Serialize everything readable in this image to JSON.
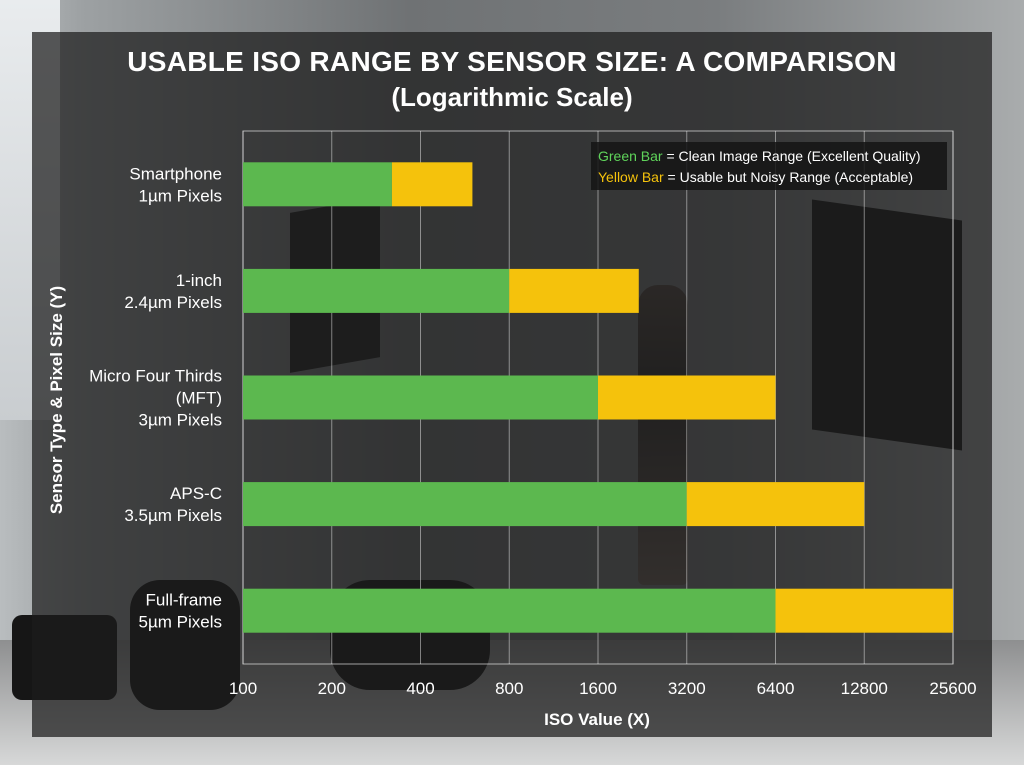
{
  "chart_data": {
    "type": "bar",
    "orientation": "horizontal",
    "stacked_ranges": true,
    "title": "USABLE ISO RANGE BY SENSOR SIZE: A COMPARISON",
    "subtitle": "(Logarithmic Scale)",
    "xlabel": "ISO Value (X)",
    "ylabel": "Sensor Type & Pixel Size (Y)",
    "x_scale": "log2",
    "xlim": [
      100,
      25600
    ],
    "x_ticks": [
      100,
      200,
      400,
      800,
      1600,
      3200,
      6400,
      12800,
      25600
    ],
    "grid": true,
    "legend_position": "top-right",
    "legend": [
      {
        "key": "Green Bar",
        "text": "= Clean Image Range (Excellent Quality)",
        "color": "#5cb84f",
        "key_color": "#5fd35a"
      },
      {
        "key": "Yellow Bar",
        "text": "= Usable but Noisy Range (Acceptable)",
        "color": "#f5c20c",
        "key_color": "#f5c20c"
      }
    ],
    "categories": [
      {
        "lines": [
          "Smartphone",
          "1µm Pixels"
        ]
      },
      {
        "lines": [
          "1-inch",
          "2.4µm Pixels"
        ]
      },
      {
        "lines": [
          "Micro Four Thirds",
          "(MFT)",
          "3µm Pixels"
        ]
      },
      {
        "lines": [
          "APS-C",
          "3.5µm Pixels"
        ]
      },
      {
        "lines": [
          "Full-frame",
          "5µm Pixels"
        ]
      }
    ],
    "series": [
      {
        "name": "Green Bar",
        "color": "#5cb84f",
        "ranges": [
          [
            100,
            320
          ],
          [
            100,
            800
          ],
          [
            100,
            1600
          ],
          [
            100,
            3200
          ],
          [
            100,
            6400
          ]
        ]
      },
      {
        "name": "Yellow Bar",
        "color": "#f5c20c",
        "ranges": [
          [
            320,
            600
          ],
          [
            800,
            2200
          ],
          [
            1600,
            6400
          ],
          [
            3200,
            12800
          ],
          [
            6400,
            25600
          ]
        ]
      }
    ]
  }
}
